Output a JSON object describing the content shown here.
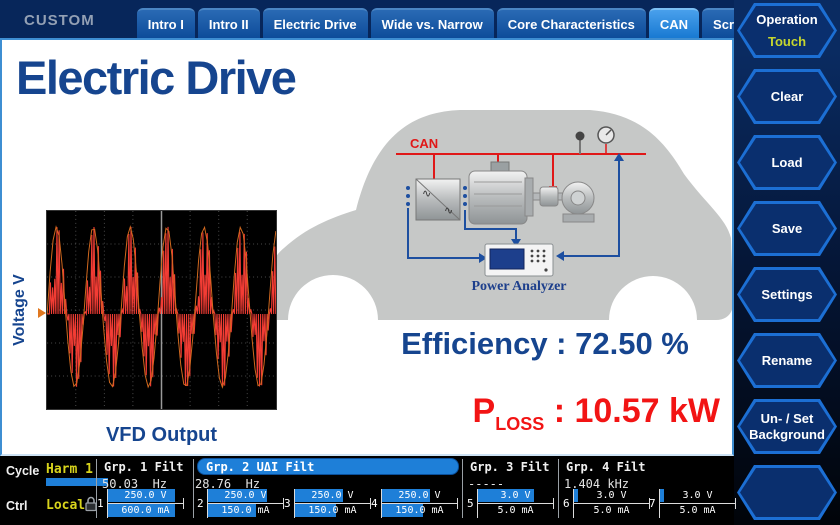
{
  "header": {
    "system_label": "CUSTOM",
    "tabs": [
      {
        "label": "Intro I",
        "active": false
      },
      {
        "label": "Intro II",
        "active": false
      },
      {
        "label": "Electric Drive",
        "active": false
      },
      {
        "label": "Wide vs. Narrow",
        "active": false
      },
      {
        "label": "Core Characteristics",
        "active": false
      },
      {
        "label": "CAN",
        "active": true
      },
      {
        "label": "Script Editor",
        "active": false
      }
    ]
  },
  "sidebar": {
    "buttons": [
      {
        "lines": [
          "Operation"
        ],
        "value": "Touch"
      },
      {
        "lines": [
          "Clear"
        ]
      },
      {
        "lines": [
          "Load"
        ]
      },
      {
        "lines": [
          "Save"
        ]
      },
      {
        "lines": [
          "Settings"
        ]
      },
      {
        "lines": [
          "Rename"
        ]
      },
      {
        "lines": [
          "Un- / Set",
          "Background"
        ]
      },
      {
        "lines": []
      }
    ]
  },
  "main": {
    "title": "Electric Drive",
    "scope": {
      "axis_label": "Voltage V",
      "caption": "VFD Output"
    },
    "diagram": {
      "can_label": "CAN",
      "analyzer_label": "Power Analyzer"
    },
    "efficiency": "Efficiency : 72.50 %",
    "ploss": {
      "base": "P",
      "sub": "LOSS",
      "rest": " : 10.57 kW"
    }
  },
  "status": {
    "cycle_label": "Cycle",
    "cycle_value": "Harm 1",
    "ctrl_label": "Ctrl",
    "ctrl_value": "Local",
    "groups": [
      {
        "name": "Grp. 1 Filt",
        "freq": "50.03  Hz",
        "highlighted": false
      },
      {
        "name": "Grp. 2 UΔI Filt",
        "freq": "28.76  Hz",
        "highlighted": true
      },
      {
        "name": "Grp. 3 Filt",
        "freq": "-----",
        "highlighted": false
      },
      {
        "name": "Grp. 4 Filt",
        "freq": "1.404 kHz",
        "highlighted": false
      }
    ],
    "channels": [
      {
        "num": "1",
        "voltage": "250.0 V",
        "current": "600.0 mA",
        "v_fill": 88,
        "c_fill": 88
      },
      {
        "num": "2",
        "voltage": "250.0 V",
        "current": "150.0 mA",
        "v_fill": 78,
        "c_fill": 63
      },
      {
        "num": "3",
        "voltage": "250.0 V",
        "current": "150.0 mA",
        "v_fill": 64,
        "c_fill": 55
      },
      {
        "num": "4",
        "voltage": "250.0 V",
        "current": "150.0 mA",
        "v_fill": 64,
        "c_fill": 55
      },
      {
        "num": "5",
        "voltage": "3.0 V",
        "current": "5.0 mA",
        "v_fill": 74,
        "c_fill": 0
      },
      {
        "num": "6",
        "voltage": "3.0 V",
        "current": "5.0 mA",
        "v_fill": 6,
        "c_fill": 0
      },
      {
        "num": "7",
        "voltage": "3.0 V",
        "current": "5.0 mA",
        "v_fill": 6,
        "c_fill": 0
      }
    ]
  },
  "colors": {
    "accent_blue": "#1e82d8",
    "navy_text": "#16458f",
    "alert_red": "#f21414",
    "bar_blue": "#1e7fd8",
    "value_yellow": "#d8d41c"
  }
}
